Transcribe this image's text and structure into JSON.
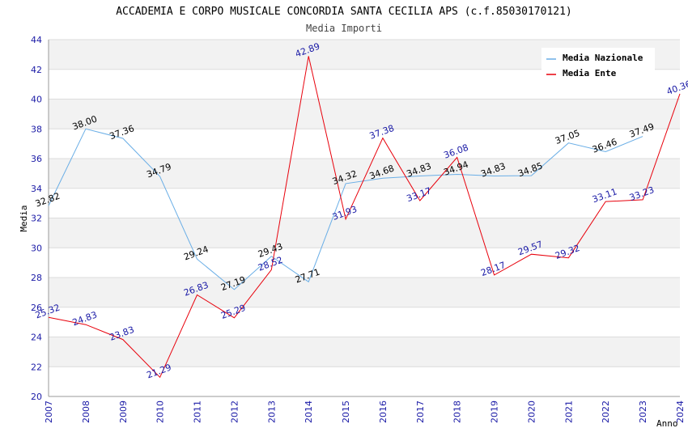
{
  "chart_data": {
    "type": "line",
    "title": "ACCADEMIA E CORPO MUSICALE CONCORDIA SANTA CECILIA APS (c.f.85030170121)",
    "subtitle": "Media Importi",
    "xlabel": "Anno",
    "ylabel": "Media",
    "ylim": [
      20,
      44
    ],
    "yticks": [
      "20",
      "22",
      "24",
      "26",
      "28",
      "30",
      "32",
      "34",
      "36",
      "38",
      "40",
      "42",
      "44"
    ],
    "categories": [
      "2007",
      "2008",
      "2009",
      "2010",
      "2011",
      "2012",
      "2013",
      "2014",
      "2015",
      "2016",
      "2017",
      "2018",
      "2019",
      "2020",
      "2021",
      "2022",
      "2023",
      "2024"
    ],
    "series": [
      {
        "name": "Media Nazionale",
        "color": "#6aaee6",
        "values": [
          32.82,
          38.0,
          37.36,
          34.79,
          29.24,
          27.19,
          29.43,
          27.71,
          34.32,
          34.68,
          34.83,
          34.94,
          34.83,
          34.85,
          37.05,
          36.46,
          37.49,
          null
        ],
        "labels": [
          "32.82",
          "38.00",
          "37.36",
          "34.79",
          "29.24",
          "27.19",
          "29.43",
          "27.71",
          "34.32",
          "34.68",
          "34.83",
          "34.94",
          "34.83",
          "34.85",
          "37.05",
          "36.46",
          "37.49",
          null
        ]
      },
      {
        "name": "Media Ente",
        "color": "#e8000b",
        "values": [
          25.32,
          24.83,
          23.83,
          21.29,
          26.83,
          25.29,
          28.52,
          42.89,
          31.93,
          37.38,
          33.17,
          36.08,
          28.17,
          29.57,
          29.32,
          33.11,
          33.23,
          40.36
        ],
        "labels": [
          "25.32",
          "24.83",
          "23.83",
          "21.29",
          "26.83",
          "25.29",
          "28.52",
          "42.89",
          "31.93",
          "37.38",
          "33.17",
          "36.08",
          "28.17",
          "29.57",
          "29.32",
          "33.11",
          "33.23",
          "40.36"
        ]
      }
    ],
    "legend_position": "top-right",
    "grid": true
  }
}
